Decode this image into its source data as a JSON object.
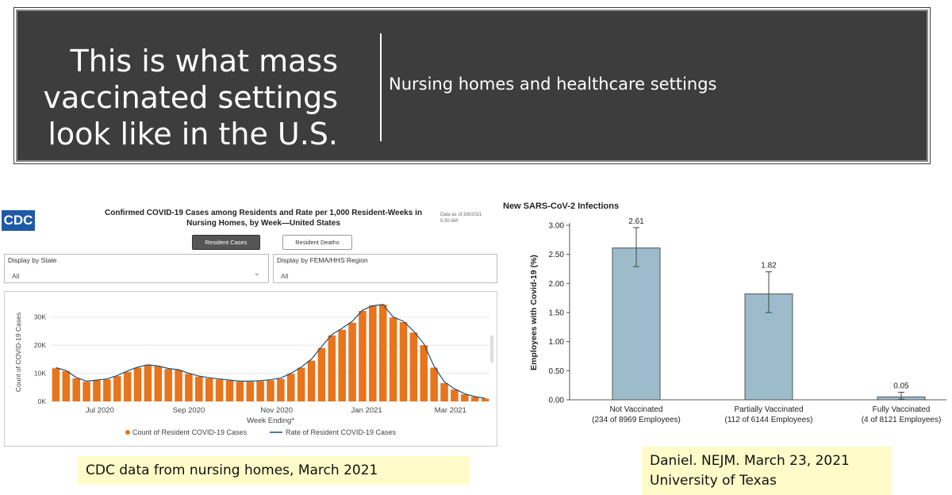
{
  "slide": {
    "headline_lines": [
      "This is what mass",
      "vaccinated settings",
      "look like in the U.S."
    ],
    "subtitle": "Nursing homes and healthcare settings",
    "note_cdc": "CDC data from nursing homes, March 2021",
    "note_nejm_line1": "Daniel. NEJM. March 23, 2021",
    "note_nejm_line2": "University of Texas"
  },
  "cdc": {
    "logo": "CDC",
    "title_line1": "Confirmed COVID-19 Cases among Residents and Rate per 1,000 Resident-Weeks in",
    "title_line2": "Nursing Homes, by Week—United States",
    "as_of_line1": "Data as of 3/8/2021",
    "as_of_line2": "5:30 AM",
    "button_cases": "Resident Cases",
    "button_deaths": "Resident Deaths",
    "filter_state_label": "Display by State",
    "filter_state_value": "All",
    "filter_region_label": "Display by FEMA/HHS Region",
    "filter_region_value": "All",
    "colors": {
      "bar": "#e8741c",
      "line": "#1f4e79"
    }
  },
  "chart_data": [
    {
      "type": "bar",
      "title": "",
      "xlabel": "Week Ending*",
      "ylabel": "Count of COVID-19 Cases",
      "ylim": [
        0,
        35000
      ],
      "yticks": [
        "0K",
        "10K",
        "20K",
        "30K"
      ],
      "yticks_values": [
        0,
        10000,
        20000,
        30000
      ],
      "xticks": [
        "Jul 2020",
        "Sep 2020",
        "Nov 2020",
        "Jan 2021",
        "Mar 2021"
      ],
      "xticks_index": [
        4.3,
        13,
        21.6,
        30.4,
        38.6
      ],
      "values": [
        11800,
        10800,
        8200,
        7000,
        7500,
        7800,
        9000,
        10500,
        12000,
        13000,
        12500,
        11500,
        11200,
        9800,
        8800,
        8200,
        7800,
        7400,
        7000,
        7000,
        7200,
        7500,
        8000,
        9800,
        12000,
        14500,
        19000,
        23500,
        25500,
        28000,
        32200,
        34200,
        34500,
        29800,
        28200,
        24500,
        20000,
        12000,
        6500,
        4200,
        2500,
        1600,
        1000
      ],
      "line_values": [
        12000,
        11000,
        8500,
        7200,
        7600,
        8000,
        9200,
        10800,
        12200,
        13000,
        12600,
        11700,
        11300,
        10000,
        9000,
        8400,
        8000,
        7600,
        7200,
        7200,
        7400,
        7700,
        8300,
        10000,
        12200,
        15000,
        19500,
        23800,
        26000,
        28500,
        32500,
        34000,
        34500,
        30000,
        28500,
        25000,
        20500,
        12500,
        7000,
        4500,
        2700,
        1700,
        1100
      ],
      "legend": [
        "Count of Resident COVID-19 Cases",
        "Rate of Resident COVID-19 Cases"
      ],
      "legend_position": "bottom"
    },
    {
      "type": "bar",
      "title": "New SARS-CoV-2 Infections",
      "ylabel": "Employees with Covid-19 (%)",
      "ylim": [
        0,
        3.0
      ],
      "yticks": [
        "0.00",
        "0.50",
        "1.00",
        "1.50",
        "2.00",
        "2.50",
        "3.00"
      ],
      "categories": [
        "Not Vaccinated",
        "Partially Vaccinated",
        "Fully Vaccinated"
      ],
      "category_sublabels": [
        "(234 of 8969 Employees)",
        "(112 of 6144 Employees)",
        "(4 of 8121 Employees)"
      ],
      "values": [
        2.61,
        1.82,
        0.05
      ],
      "value_labels": [
        "2.61",
        "1.82",
        "0.05"
      ],
      "error_low": [
        2.29,
        1.5,
        0.01
      ],
      "error_high": [
        2.96,
        2.2,
        0.13
      ],
      "colors": {
        "bar": "#9cbccc",
        "bar_edge": "#555555"
      }
    }
  ]
}
